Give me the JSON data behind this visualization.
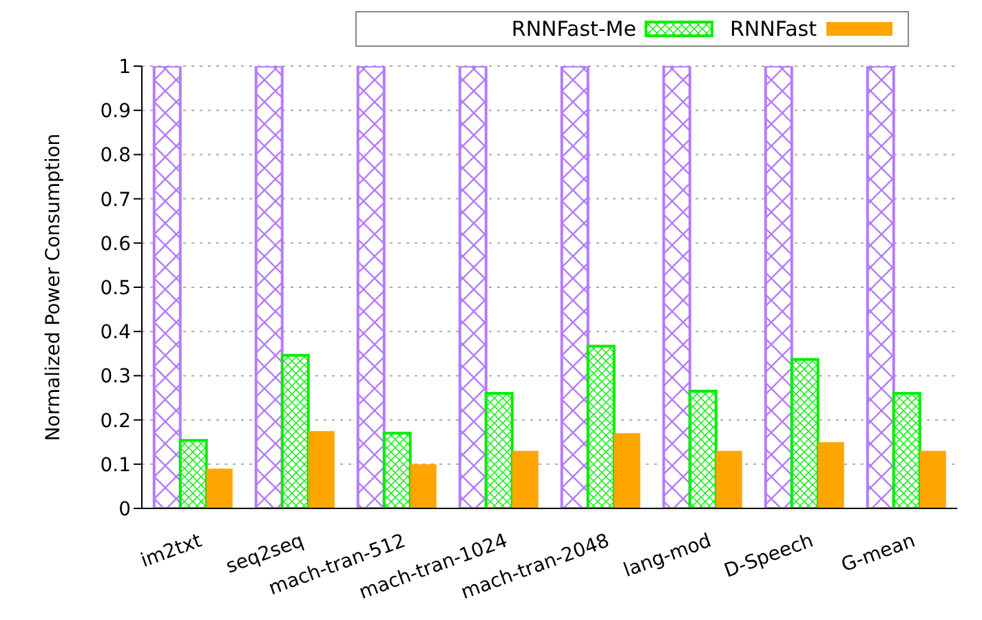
{
  "chart_data": {
    "type": "bar",
    "ylabel": "Normalized Power Consumption",
    "categories": [
      "im2txt",
      "seq2seq",
      "mach-tran-512",
      "mach-tran-1024",
      "mach-tran-2048",
      "lang-mod",
      "D-Speech",
      "G-mean"
    ],
    "series": [
      {
        "color": "#b57bff",
        "values": [
          1,
          1,
          1,
          1,
          1,
          1,
          1,
          1
        ]
      },
      {
        "name": "RNNFast-Me",
        "color": "#00ee00",
        "values": [
          0.154,
          0.346,
          0.17,
          0.26,
          0.367,
          0.265,
          0.337,
          0.26
        ]
      },
      {
        "name": "RNNFast",
        "color": "#ffa500",
        "values": [
          0.09,
          0.175,
          0.1,
          0.13,
          0.17,
          0.13,
          0.15,
          0.13
        ]
      }
    ],
    "ylim": [
      0,
      1
    ],
    "yticks": [
      0,
      0.1,
      0.2,
      0.3,
      0.4,
      0.5,
      0.6,
      0.7,
      0.8,
      0.9,
      1
    ],
    "grid": "y",
    "legend": "top"
  }
}
